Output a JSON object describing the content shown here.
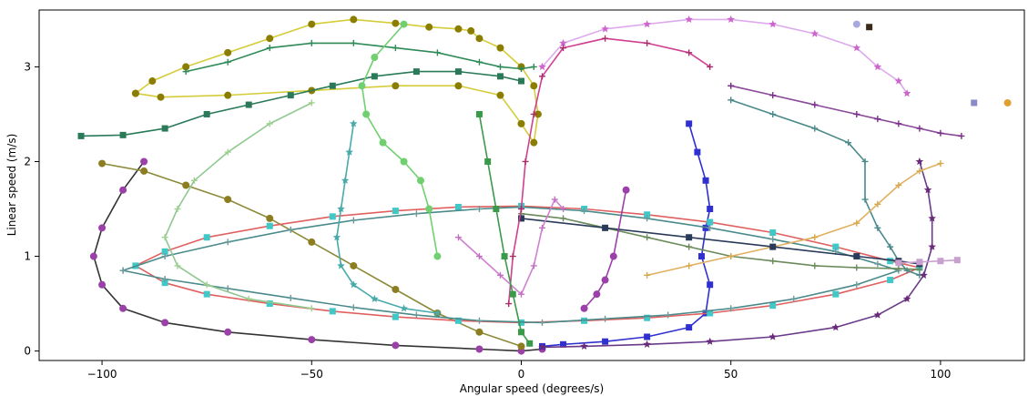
{
  "chart_data": {
    "type": "line",
    "title": "",
    "xlabel": "Angular speed (degrees/s)",
    "ylabel": "Linear speed (m/s)",
    "xlim": [
      -115,
      120
    ],
    "ylim": [
      -0.1,
      3.6
    ],
    "xticks": [
      -100,
      -50,
      0,
      50,
      100
    ],
    "yticks": [
      0,
      1,
      2,
      3
    ],
    "grid": false,
    "legend": "none",
    "series": [
      {
        "color": "#8b7d00",
        "marker": "circle",
        "line": "#d4cc3a",
        "x": [
          -92,
          -88,
          -80,
          -70,
          -60,
          -50,
          -40,
          -30,
          -22,
          -15,
          -12,
          -10,
          -5,
          0,
          3,
          4,
          3,
          0,
          -5,
          -15,
          -30,
          -50,
          -70,
          -86,
          -92
        ],
        "y": [
          2.72,
          2.85,
          3.0,
          3.15,
          3.3,
          3.45,
          3.5,
          3.46,
          3.42,
          3.4,
          3.38,
          3.3,
          3.2,
          3.0,
          2.8,
          2.5,
          2.2,
          2.4,
          2.7,
          2.8,
          2.8,
          2.75,
          2.7,
          2.68,
          2.72
        ]
      },
      {
        "color": "#2e8b57",
        "marker": "plus",
        "line": "#2e8b57",
        "x": [
          -80,
          -70,
          -60,
          -50,
          -40,
          -30,
          -20,
          -10,
          -5,
          0,
          3
        ],
        "y": [
          2.95,
          3.05,
          3.2,
          3.25,
          3.25,
          3.2,
          3.15,
          3.05,
          3.0,
          2.98,
          3.0
        ]
      },
      {
        "color": "#7a2a8a",
        "marker": "plus",
        "line": "#8b4a9a",
        "x": [
          50,
          60,
          70,
          80,
          85,
          90,
          95,
          100,
          105
        ],
        "y": [
          2.8,
          2.7,
          2.6,
          2.5,
          2.45,
          2.4,
          2.35,
          2.3,
          2.27
        ]
      },
      {
        "color": "#cc66cc",
        "marker": "star",
        "line": "#ddaaee",
        "x": [
          5,
          10,
          20,
          30,
          40,
          50,
          60,
          70,
          80,
          85,
          90,
          92
        ],
        "y": [
          3.0,
          3.25,
          3.4,
          3.45,
          3.5,
          3.5,
          3.45,
          3.35,
          3.2,
          3.0,
          2.85,
          2.72
        ]
      },
      {
        "color": "#2a7a5a",
        "marker": "square",
        "line": "#2a7a5a",
        "x": [
          -105,
          -95,
          -85,
          -75,
          -65,
          -55,
          -45,
          -35,
          -25,
          -15,
          -5,
          0
        ],
        "y": [
          2.27,
          2.28,
          2.35,
          2.5,
          2.6,
          2.7,
          2.8,
          2.9,
          2.95,
          2.95,
          2.9,
          2.85
        ]
      },
      {
        "color": "#9a40a8",
        "marker": "circle",
        "line": "#333333",
        "x": [
          -90,
          -95,
          -100,
          -102,
          -100,
          -95,
          -85,
          -70,
          -50,
          -30,
          -10,
          0,
          5
        ],
        "y": [
          2.0,
          1.7,
          1.3,
          1.0,
          0.7,
          0.45,
          0.3,
          0.2,
          0.12,
          0.06,
          0.02,
          0.0,
          0.02
        ]
      },
      {
        "color": "#8b7d20",
        "marker": "circle",
        "line": "#8b8b3a",
        "x": [
          -100,
          -90,
          -80,
          -70,
          -60,
          -50,
          -40,
          -30,
          -20,
          -10,
          0
        ],
        "y": [
          1.98,
          1.9,
          1.75,
          1.6,
          1.4,
          1.15,
          0.9,
          0.65,
          0.4,
          0.2,
          0.05
        ]
      },
      {
        "color": "#3030d0",
        "marker": "square",
        "line": "#3030d0",
        "x": [
          40,
          42,
          44,
          45,
          44,
          43,
          45,
          44,
          40,
          30,
          20,
          10,
          5
        ],
        "y": [
          2.4,
          2.1,
          1.8,
          1.5,
          1.3,
          1.0,
          0.7,
          0.4,
          0.25,
          0.15,
          0.1,
          0.07,
          0.05
        ]
      },
      {
        "color": "#40c8c8",
        "marker": "square",
        "line": "#e06060",
        "x": [
          -92,
          -85,
          -75,
          -60,
          -45,
          -30,
          -15,
          0,
          15,
          30,
          45,
          60,
          75,
          88,
          95,
          88,
          75,
          60,
          45,
          30,
          15,
          0,
          -15,
          -30,
          -45,
          -60,
          -75,
          -85,
          -92
        ],
        "y": [
          0.9,
          1.05,
          1.2,
          1.32,
          1.42,
          1.48,
          1.52,
          1.53,
          1.5,
          1.44,
          1.36,
          1.25,
          1.1,
          0.95,
          0.88,
          0.75,
          0.6,
          0.48,
          0.4,
          0.35,
          0.32,
          0.3,
          0.32,
          0.36,
          0.42,
          0.5,
          0.6,
          0.72,
          0.9
        ]
      },
      {
        "color": "#6a9a9a",
        "marker": "plus",
        "line": "#4a8a8a",
        "x": [
          -95,
          -85,
          -70,
          -55,
          -40,
          -25,
          -10,
          0,
          15,
          30,
          45,
          60,
          75,
          85,
          90,
          80,
          65,
          50,
          35,
          20,
          5,
          -10,
          -25,
          -40,
          -55,
          -70,
          -85,
          -95
        ],
        "y": [
          0.85,
          1.0,
          1.15,
          1.28,
          1.38,
          1.45,
          1.5,
          1.52,
          1.48,
          1.4,
          1.3,
          1.18,
          1.05,
          0.92,
          0.85,
          0.7,
          0.55,
          0.45,
          0.38,
          0.34,
          0.3,
          0.32,
          0.38,
          0.46,
          0.56,
          0.66,
          0.76,
          0.85
        ]
      },
      {
        "color": "#6a8a5a",
        "marker": "plus",
        "line": "#6a8a5a",
        "x": [
          0,
          10,
          20,
          30,
          40,
          50,
          60,
          70,
          80,
          90,
          95
        ],
        "y": [
          1.45,
          1.4,
          1.3,
          1.2,
          1.1,
          1.0,
          0.95,
          0.9,
          0.88,
          0.87,
          0.86
        ]
      },
      {
        "color": "#4aaaaa",
        "marker": "star",
        "line": "#4aaaaa",
        "x": [
          -40,
          -41,
          -42,
          -43,
          -44,
          -43,
          -40,
          -35,
          -28,
          -20
        ],
        "y": [
          2.4,
          2.1,
          1.8,
          1.5,
          1.2,
          0.9,
          0.7,
          0.55,
          0.45,
          0.4
        ]
      },
      {
        "color": "#70d070",
        "marker": "circle",
        "line": "#70d070",
        "x": [
          -28,
          -35,
          -38,
          -37,
          -33,
          -28,
          -24,
          -22,
          -20
        ],
        "y": [
          3.45,
          3.1,
          2.8,
          2.5,
          2.2,
          2.0,
          1.8,
          1.5,
          1.0
        ]
      },
      {
        "color": "#a0d090",
        "marker": "plus",
        "line": "#90c890",
        "x": [
          -50,
          -60,
          -70,
          -78,
          -82,
          -85,
          -82,
          -75,
          -65,
          -50
        ],
        "y": [
          2.62,
          2.4,
          2.1,
          1.8,
          1.5,
          1.2,
          0.9,
          0.7,
          0.55,
          0.45
        ]
      },
      {
        "color": "#4a8a8a",
        "marker": "plus",
        "line": "#4a8a8a",
        "x": [
          50,
          60,
          70,
          78,
          82,
          82,
          85,
          88,
          90,
          92,
          95
        ],
        "y": [
          2.65,
          2.5,
          2.35,
          2.2,
          2.0,
          1.6,
          1.3,
          1.1,
          0.95,
          0.85,
          0.8
        ]
      },
      {
        "color": "#6a2a7a",
        "marker": "star",
        "line": "#6a3a8a",
        "x": [
          95,
          97,
          98,
          98,
          96,
          92,
          85,
          75,
          60,
          45,
          30,
          15,
          5
        ],
        "y": [
          2.0,
          1.7,
          1.4,
          1.1,
          0.8,
          0.55,
          0.38,
          0.25,
          0.15,
          0.1,
          0.07,
          0.05,
          0.04
        ]
      },
      {
        "color": "#d4a84a",
        "marker": "plus",
        "line": "#e0b060",
        "x": [
          30,
          40,
          50,
          60,
          70,
          80,
          85,
          90,
          95,
          100
        ],
        "y": [
          0.8,
          0.9,
          1.0,
          1.1,
          1.2,
          1.35,
          1.55,
          1.75,
          1.9,
          1.98
        ]
      },
      {
        "color": "#2a3a5a",
        "marker": "square",
        "line": "#2a3a5a",
        "x": [
          0,
          20,
          40,
          60,
          80,
          90,
          95
        ],
        "y": [
          1.4,
          1.3,
          1.2,
          1.1,
          1.0,
          0.95,
          0.92
        ]
      },
      {
        "color": "#aa2a6a",
        "marker": "plus",
        "line": "#d04090",
        "x": [
          -3,
          -2,
          0,
          1,
          3,
          5,
          10,
          20,
          30,
          40,
          45
        ],
        "y": [
          0.5,
          1.0,
          1.5,
          2.0,
          2.5,
          2.9,
          3.2,
          3.3,
          3.25,
          3.15,
          3.0
        ]
      },
      {
        "color": "#c070c0",
        "marker": "plus",
        "line": "#d080d0",
        "x": [
          -15,
          -10,
          -5,
          0,
          3,
          5,
          8,
          10
        ],
        "y": [
          1.2,
          1.0,
          0.8,
          0.6,
          0.9,
          1.3,
          1.6,
          1.5
        ]
      },
      {
        "color": "#3a9a4a",
        "marker": "square",
        "line": "#3a9a4a",
        "x": [
          -10,
          -8,
          -6,
          -4,
          -2,
          0,
          2
        ],
        "y": [
          2.5,
          2.0,
          1.5,
          1.0,
          0.6,
          0.2,
          0.08
        ]
      },
      {
        "color": "#c8a0d0",
        "marker": "square",
        "line": "#c8a0d0",
        "x": [
          90,
          95,
          100,
          104
        ],
        "y": [
          0.93,
          0.94,
          0.95,
          0.96
        ]
      },
      {
        "color": "#9a40a8",
        "marker": "circle",
        "line": "#9a40a8",
        "x": [
          15,
          18,
          20,
          22,
          25
        ],
        "y": [
          0.45,
          0.6,
          0.75,
          1.0,
          1.7
        ]
      }
    ],
    "isolated_points": [
      {
        "x": 80,
        "y": 3.45,
        "color": "#a8a8e0",
        "marker": "circle"
      },
      {
        "x": 83,
        "y": 3.42,
        "color": "#3a2a1a",
        "marker": "square"
      },
      {
        "x": 108,
        "y": 2.62,
        "color": "#8a8ac8",
        "marker": "square"
      },
      {
        "x": 116,
        "y": 2.62,
        "color": "#e0a030",
        "marker": "circle"
      }
    ]
  }
}
